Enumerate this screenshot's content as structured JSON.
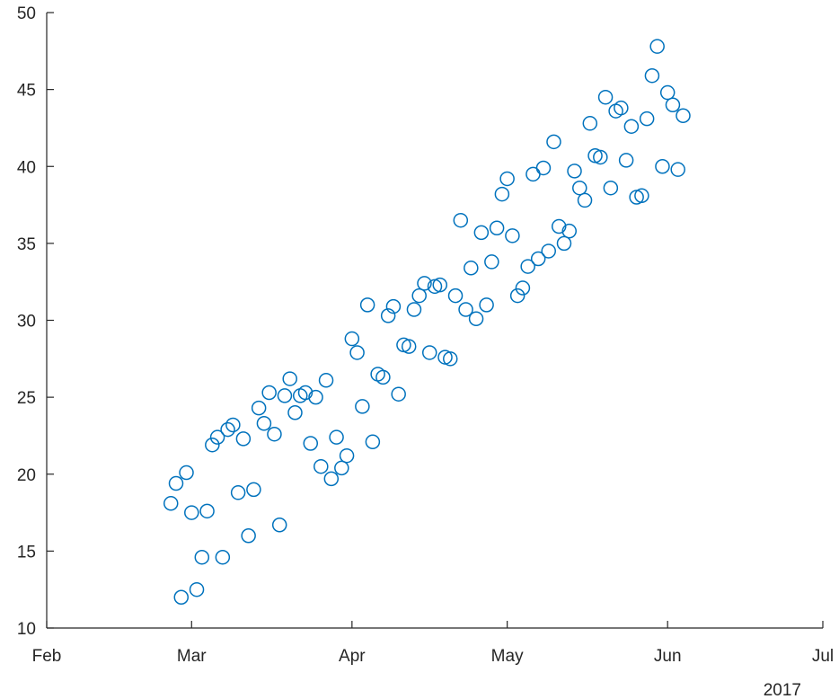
{
  "chart_data": {
    "type": "scatter",
    "title": "",
    "xlabel": "",
    "ylabel": "",
    "x_axis_note": "2017",
    "xlim": [
      "2017-02-01",
      "2017-07-01"
    ],
    "ylim": [
      10,
      50
    ],
    "xticks": [
      {
        "date": "2017-02-01",
        "label": "Feb"
      },
      {
        "date": "2017-03-01",
        "label": "Mar"
      },
      {
        "date": "2017-04-01",
        "label": "Apr"
      },
      {
        "date": "2017-05-01",
        "label": "May"
      },
      {
        "date": "2017-06-01",
        "label": "Jun"
      },
      {
        "date": "2017-07-01",
        "label": "Jul"
      }
    ],
    "yticks": [
      10,
      15,
      20,
      25,
      30,
      35,
      40,
      45,
      50
    ],
    "marker": "open-circle",
    "marker_color": "#0072BD",
    "axis_color": "#262626",
    "grid": false,
    "points": [
      [
        "2017-02-25",
        18.1
      ],
      [
        "2017-02-26",
        19.4
      ],
      [
        "2017-02-27",
        12.0
      ],
      [
        "2017-02-28",
        20.1
      ],
      [
        "2017-03-01",
        17.5
      ],
      [
        "2017-03-02",
        12.5
      ],
      [
        "2017-03-03",
        14.6
      ],
      [
        "2017-03-04",
        17.6
      ],
      [
        "2017-03-05",
        21.9
      ],
      [
        "2017-03-06",
        22.4
      ],
      [
        "2017-03-07",
        14.6
      ],
      [
        "2017-03-08",
        22.9
      ],
      [
        "2017-03-09",
        23.2
      ],
      [
        "2017-03-10",
        18.8
      ],
      [
        "2017-03-11",
        22.3
      ],
      [
        "2017-03-12",
        16.0
      ],
      [
        "2017-03-13",
        19.0
      ],
      [
        "2017-03-14",
        24.3
      ],
      [
        "2017-03-15",
        23.3
      ],
      [
        "2017-03-16",
        25.3
      ],
      [
        "2017-03-17",
        22.6
      ],
      [
        "2017-03-18",
        16.7
      ],
      [
        "2017-03-19",
        25.1
      ],
      [
        "2017-03-20",
        26.2
      ],
      [
        "2017-03-21",
        24.0
      ],
      [
        "2017-03-22",
        25.1
      ],
      [
        "2017-03-23",
        25.3
      ],
      [
        "2017-03-24",
        22.0
      ],
      [
        "2017-03-25",
        25.0
      ],
      [
        "2017-03-26",
        20.5
      ],
      [
        "2017-03-27",
        26.1
      ],
      [
        "2017-03-28",
        19.7
      ],
      [
        "2017-03-29",
        22.4
      ],
      [
        "2017-03-30",
        20.4
      ],
      [
        "2017-03-31",
        21.2
      ],
      [
        "2017-04-01",
        28.8
      ],
      [
        "2017-04-02",
        27.9
      ],
      [
        "2017-04-03",
        24.4
      ],
      [
        "2017-04-04",
        31.0
      ],
      [
        "2017-04-05",
        22.1
      ],
      [
        "2017-04-06",
        26.5
      ],
      [
        "2017-04-07",
        26.3
      ],
      [
        "2017-04-08",
        30.3
      ],
      [
        "2017-04-09",
        30.9
      ],
      [
        "2017-04-10",
        25.2
      ],
      [
        "2017-04-11",
        28.4
      ],
      [
        "2017-04-12",
        28.3
      ],
      [
        "2017-04-13",
        30.7
      ],
      [
        "2017-04-14",
        31.6
      ],
      [
        "2017-04-15",
        32.4
      ],
      [
        "2017-04-16",
        27.9
      ],
      [
        "2017-04-17",
        32.2
      ],
      [
        "2017-04-18",
        32.3
      ],
      [
        "2017-04-19",
        27.6
      ],
      [
        "2017-04-20",
        27.5
      ],
      [
        "2017-04-21",
        31.6
      ],
      [
        "2017-04-22",
        36.5
      ],
      [
        "2017-04-23",
        30.7
      ],
      [
        "2017-04-24",
        33.4
      ],
      [
        "2017-04-25",
        30.1
      ],
      [
        "2017-04-26",
        35.7
      ],
      [
        "2017-04-27",
        31.0
      ],
      [
        "2017-04-28",
        33.8
      ],
      [
        "2017-04-29",
        36.0
      ],
      [
        "2017-04-30",
        38.2
      ],
      [
        "2017-05-01",
        39.2
      ],
      [
        "2017-05-02",
        35.5
      ],
      [
        "2017-05-03",
        31.6
      ],
      [
        "2017-05-04",
        32.1
      ],
      [
        "2017-05-05",
        33.5
      ],
      [
        "2017-05-06",
        39.5
      ],
      [
        "2017-05-07",
        34.0
      ],
      [
        "2017-05-08",
        39.9
      ],
      [
        "2017-05-09",
        34.5
      ],
      [
        "2017-05-10",
        41.6
      ],
      [
        "2017-05-11",
        36.1
      ],
      [
        "2017-05-12",
        35.0
      ],
      [
        "2017-05-13",
        35.8
      ],
      [
        "2017-05-14",
        39.7
      ],
      [
        "2017-05-15",
        38.6
      ],
      [
        "2017-05-16",
        37.8
      ],
      [
        "2017-05-17",
        42.8
      ],
      [
        "2017-05-18",
        40.7
      ],
      [
        "2017-05-19",
        40.6
      ],
      [
        "2017-05-20",
        44.5
      ],
      [
        "2017-05-21",
        38.6
      ],
      [
        "2017-05-22",
        43.6
      ],
      [
        "2017-05-23",
        43.8
      ],
      [
        "2017-05-24",
        40.4
      ],
      [
        "2017-05-25",
        42.6
      ],
      [
        "2017-05-26",
        38.0
      ],
      [
        "2017-05-27",
        38.1
      ],
      [
        "2017-05-28",
        43.1
      ],
      [
        "2017-05-29",
        45.9
      ],
      [
        "2017-05-30",
        47.8
      ],
      [
        "2017-05-31",
        40.0
      ],
      [
        "2017-06-01",
        44.8
      ],
      [
        "2017-06-02",
        44.0
      ],
      [
        "2017-06-03",
        39.8
      ],
      [
        "2017-06-04",
        43.3
      ]
    ]
  }
}
